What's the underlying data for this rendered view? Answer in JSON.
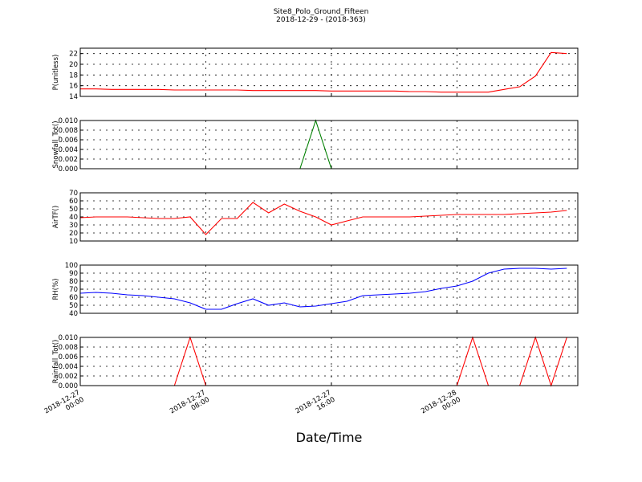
{
  "chart_data": {
    "type": "line",
    "title": "Site8_Polo_Ground_Fifteen",
    "subtitle": "2018-12-29 - (2018-363)",
    "xlabel": "Date/Time",
    "grid": true,
    "x": [
      "2018-12-27 00:00",
      "2018-12-27 01:00",
      "2018-12-27 02:00",
      "2018-12-27 03:00",
      "2018-12-27 04:00",
      "2018-12-27 05:00",
      "2018-12-27 06:00",
      "2018-12-27 07:00",
      "2018-12-27 08:00",
      "2018-12-27 09:00",
      "2018-12-27 10:00",
      "2018-12-27 11:00",
      "2018-12-27 12:00",
      "2018-12-27 13:00",
      "2018-12-27 14:00",
      "2018-12-27 15:00",
      "2018-12-27 16:00",
      "2018-12-27 17:00",
      "2018-12-27 18:00",
      "2018-12-27 19:00",
      "2018-12-27 20:00",
      "2018-12-27 21:00",
      "2018-12-27 22:00",
      "2018-12-27 23:00",
      "2018-12-28 00:00",
      "2018-12-28 01:00",
      "2018-12-28 02:00",
      "2018-12-28 03:00",
      "2018-12-28 04:00",
      "2018-12-28 05:00",
      "2018-12-28 06:00",
      "2018-12-28 07:00"
    ],
    "xlim": [
      "2018-12-27 00:00",
      "2018-12-28 07:42"
    ],
    "xticks": [
      "2018-12-27 00:00",
      "2018-12-27 08:00",
      "2018-12-27 16:00",
      "2018-12-28 00:00"
    ],
    "panels": [
      {
        "ylabel": "P(unitless)",
        "ylim": [
          14,
          23
        ],
        "yticks": [
          14,
          16,
          18,
          20,
          22
        ],
        "series": [
          {
            "color": "#ff0000",
            "values": [
              15.4,
              15.4,
              15.3,
              15.3,
              15.3,
              15.3,
              15.2,
              15.2,
              15.2,
              15.2,
              15.2,
              15.1,
              15.1,
              15.1,
              15.1,
              15.1,
              15.0,
              15.0,
              15.0,
              15.0,
              15.0,
              14.9,
              14.9,
              14.8,
              14.8,
              14.8,
              14.8,
              15.3,
              15.8,
              17.8,
              22.2,
              22.0
            ]
          }
        ]
      },
      {
        "ylabel": "Snowfall_Tot()",
        "ylim": [
          0,
          0.01
        ],
        "yticks": [
          {
            "value": 0,
            "label": "0.000"
          },
          {
            "value": 0.002,
            "label": "0.002"
          },
          {
            "value": 0.004,
            "label": "0.004"
          },
          {
            "value": 0.006,
            "label": "0.006"
          },
          {
            "value": 0.008,
            "label": "0.008"
          },
          {
            "value": 0.01,
            "label": "0.010"
          }
        ],
        "series": [
          {
            "color": "#008000",
            "values": [
              0,
              0,
              0,
              0,
              0,
              0,
              0,
              0,
              0,
              0,
              0,
              0,
              0,
              0,
              0,
              0.01,
              0,
              0,
              0,
              0,
              0,
              0,
              0,
              0,
              0,
              0,
              0,
              0,
              0,
              0,
              0,
              0
            ]
          }
        ]
      },
      {
        "ylabel": "AirTF()",
        "ylim": [
          10,
          70
        ],
        "yticks": [
          10,
          20,
          30,
          40,
          50,
          60,
          70
        ],
        "series": [
          {
            "color": "#ff0000",
            "values": [
              39,
              40,
              40,
              40,
              39,
              38,
              38,
              40,
              18,
              38,
              38,
              58,
              45,
              56,
              47,
              40,
              30,
              35,
              40,
              40,
              40,
              40,
              41,
              42,
              43,
              43,
              43,
              43,
              44,
              45,
              46,
              48
            ]
          }
        ]
      },
      {
        "ylabel": "RH(%)",
        "ylim": [
          40,
          100
        ],
        "yticks": [
          40,
          50,
          60,
          70,
          80,
          90,
          100
        ],
        "series": [
          {
            "color": "#0000ff",
            "values": [
              65,
              66,
              65,
              63,
              62,
              60,
              58,
              53,
              45,
              45,
              52,
              58,
              50,
              53,
              48,
              49,
              52,
              55,
              62,
              63,
              64,
              65,
              67,
              71,
              74,
              80,
              90,
              95,
              96,
              96,
              95,
              96
            ]
          }
        ]
      },
      {
        "ylabel": "Rainfall_Tot()",
        "ylim": [
          0,
          0.01
        ],
        "yticks": [
          {
            "value": 0,
            "label": "0.000"
          },
          {
            "value": 0.002,
            "label": "0.002"
          },
          {
            "value": 0.004,
            "label": "0.004"
          },
          {
            "value": 0.006,
            "label": "0.006"
          },
          {
            "value": 0.008,
            "label": "0.008"
          },
          {
            "value": 0.01,
            "label": "0.010"
          }
        ],
        "series": [
          {
            "color": "#ff0000",
            "values": [
              0,
              0,
              0,
              0,
              0,
              0,
              0,
              0.01,
              0,
              0,
              0,
              0,
              0,
              0,
              0,
              0,
              0,
              0,
              0,
              0,
              0,
              0,
              0,
              0,
              0,
              0.01,
              0,
              0,
              0,
              0.01,
              0,
              0.01
            ]
          }
        ]
      }
    ]
  }
}
